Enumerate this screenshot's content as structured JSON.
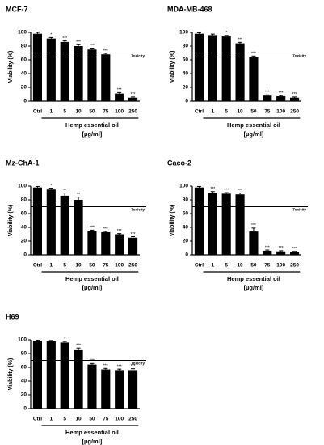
{
  "chart_data": [
    {
      "type": "bar",
      "title": "MCF-7",
      "ylabel": "Viability (%)",
      "xlabel": [
        "Hemp essential oil",
        "[µg/ml]"
      ],
      "categories": [
        "Ctrl",
        "1",
        "5",
        "10",
        "50",
        "75",
        "100",
        "250"
      ],
      "values": [
        98,
        91,
        86,
        80,
        75,
        68,
        11,
        5
      ],
      "errors": [
        2,
        1.5,
        1.5,
        2,
        2,
        1.5,
        1.5,
        1
      ],
      "value_labels": [
        null,
        "*",
        "***",
        "***",
        "***",
        "***",
        "***",
        "***"
      ],
      "threshold": {
        "value": 70,
        "label": "Toxicity"
      },
      "color": "#000000",
      "ylim": [
        0,
        100
      ],
      "yticks": [
        0,
        20,
        40,
        60,
        80,
        100
      ]
    },
    {
      "type": "bar",
      "title": "MDA-MB-468",
      "ylabel": "Viability (%)",
      "xlabel": [
        "Hemp essential oil",
        "[µg/ml]"
      ],
      "categories": [
        "Ctrl",
        "1",
        "5",
        "10",
        "50",
        "75",
        "100",
        "250"
      ],
      "values": [
        98,
        96,
        94,
        84,
        64,
        8,
        7,
        5
      ],
      "errors": [
        1.5,
        1.5,
        1.5,
        1.5,
        1.5,
        1,
        1,
        1
      ],
      "value_labels": [
        null,
        null,
        "*",
        "***",
        "***",
        "***",
        "***",
        "***"
      ],
      "threshold": {
        "value": 70,
        "label": "Toxicity"
      },
      "color": "#000000",
      "ylim": [
        0,
        100
      ],
      "yticks": [
        0,
        20,
        40,
        60,
        80,
        100
      ]
    },
    {
      "type": "bar",
      "title": "Mz-ChA-1",
      "ylabel": "Viability (%)",
      "xlabel": [
        "Hemp essential oil",
        "[µg/ml]"
      ],
      "categories": [
        "Ctrl",
        "1",
        "5",
        "10",
        "50",
        "75",
        "100",
        "250"
      ],
      "values": [
        98,
        95,
        86,
        80,
        35,
        33,
        30,
        25
      ],
      "errors": [
        1.5,
        2,
        4,
        4,
        1,
        1,
        1,
        1.5
      ],
      "value_labels": [
        null,
        "*",
        "**",
        "**",
        "***",
        "***",
        "***",
        "***"
      ],
      "threshold": {
        "value": 70,
        "label": "Toxicity"
      },
      "color": "#000000",
      "ylim": [
        0,
        100
      ],
      "yticks": [
        0,
        20,
        40,
        60,
        80,
        100
      ]
    },
    {
      "type": "bar",
      "title": "Caco-2",
      "ylabel": "Viability (%)",
      "xlabel": [
        "Hemp essential oil",
        "[µg/ml]"
      ],
      "categories": [
        "Ctrl",
        "1",
        "5",
        "10",
        "50",
        "75",
        "100",
        "250"
      ],
      "values": [
        98,
        90,
        89,
        88,
        34,
        6,
        5,
        4
      ],
      "errors": [
        1.5,
        2,
        1.5,
        2,
        5,
        1,
        1,
        1
      ],
      "value_labels": [
        null,
        "***",
        "***",
        "***",
        "***",
        "***",
        "***",
        "***"
      ],
      "threshold": {
        "value": 70,
        "label": "Toxicity"
      },
      "color": "#000000",
      "ylim": [
        0,
        100
      ],
      "yticks": [
        0,
        20,
        40,
        60,
        80,
        100
      ]
    },
    {
      "type": "bar",
      "title": "H69",
      "ylabel": "Viability (%)",
      "xlabel": [
        "Hemp essential oil",
        "[µg/ml]"
      ],
      "categories": [
        "Ctrl",
        "1",
        "5",
        "10",
        "50",
        "75",
        "100",
        "250"
      ],
      "values": [
        98,
        98,
        96,
        86,
        64,
        57,
        56,
        56
      ],
      "errors": [
        1.5,
        1,
        1.5,
        2,
        1.5,
        1.5,
        1.5,
        2
      ],
      "value_labels": [
        null,
        null,
        "*",
        "***",
        "***",
        "***",
        "***",
        "***"
      ],
      "threshold": {
        "value": 70,
        "label": "Toxicity"
      },
      "color": "#000000",
      "ylim": [
        0,
        100
      ],
      "yticks": [
        0,
        20,
        40,
        60,
        80,
        100
      ]
    }
  ]
}
